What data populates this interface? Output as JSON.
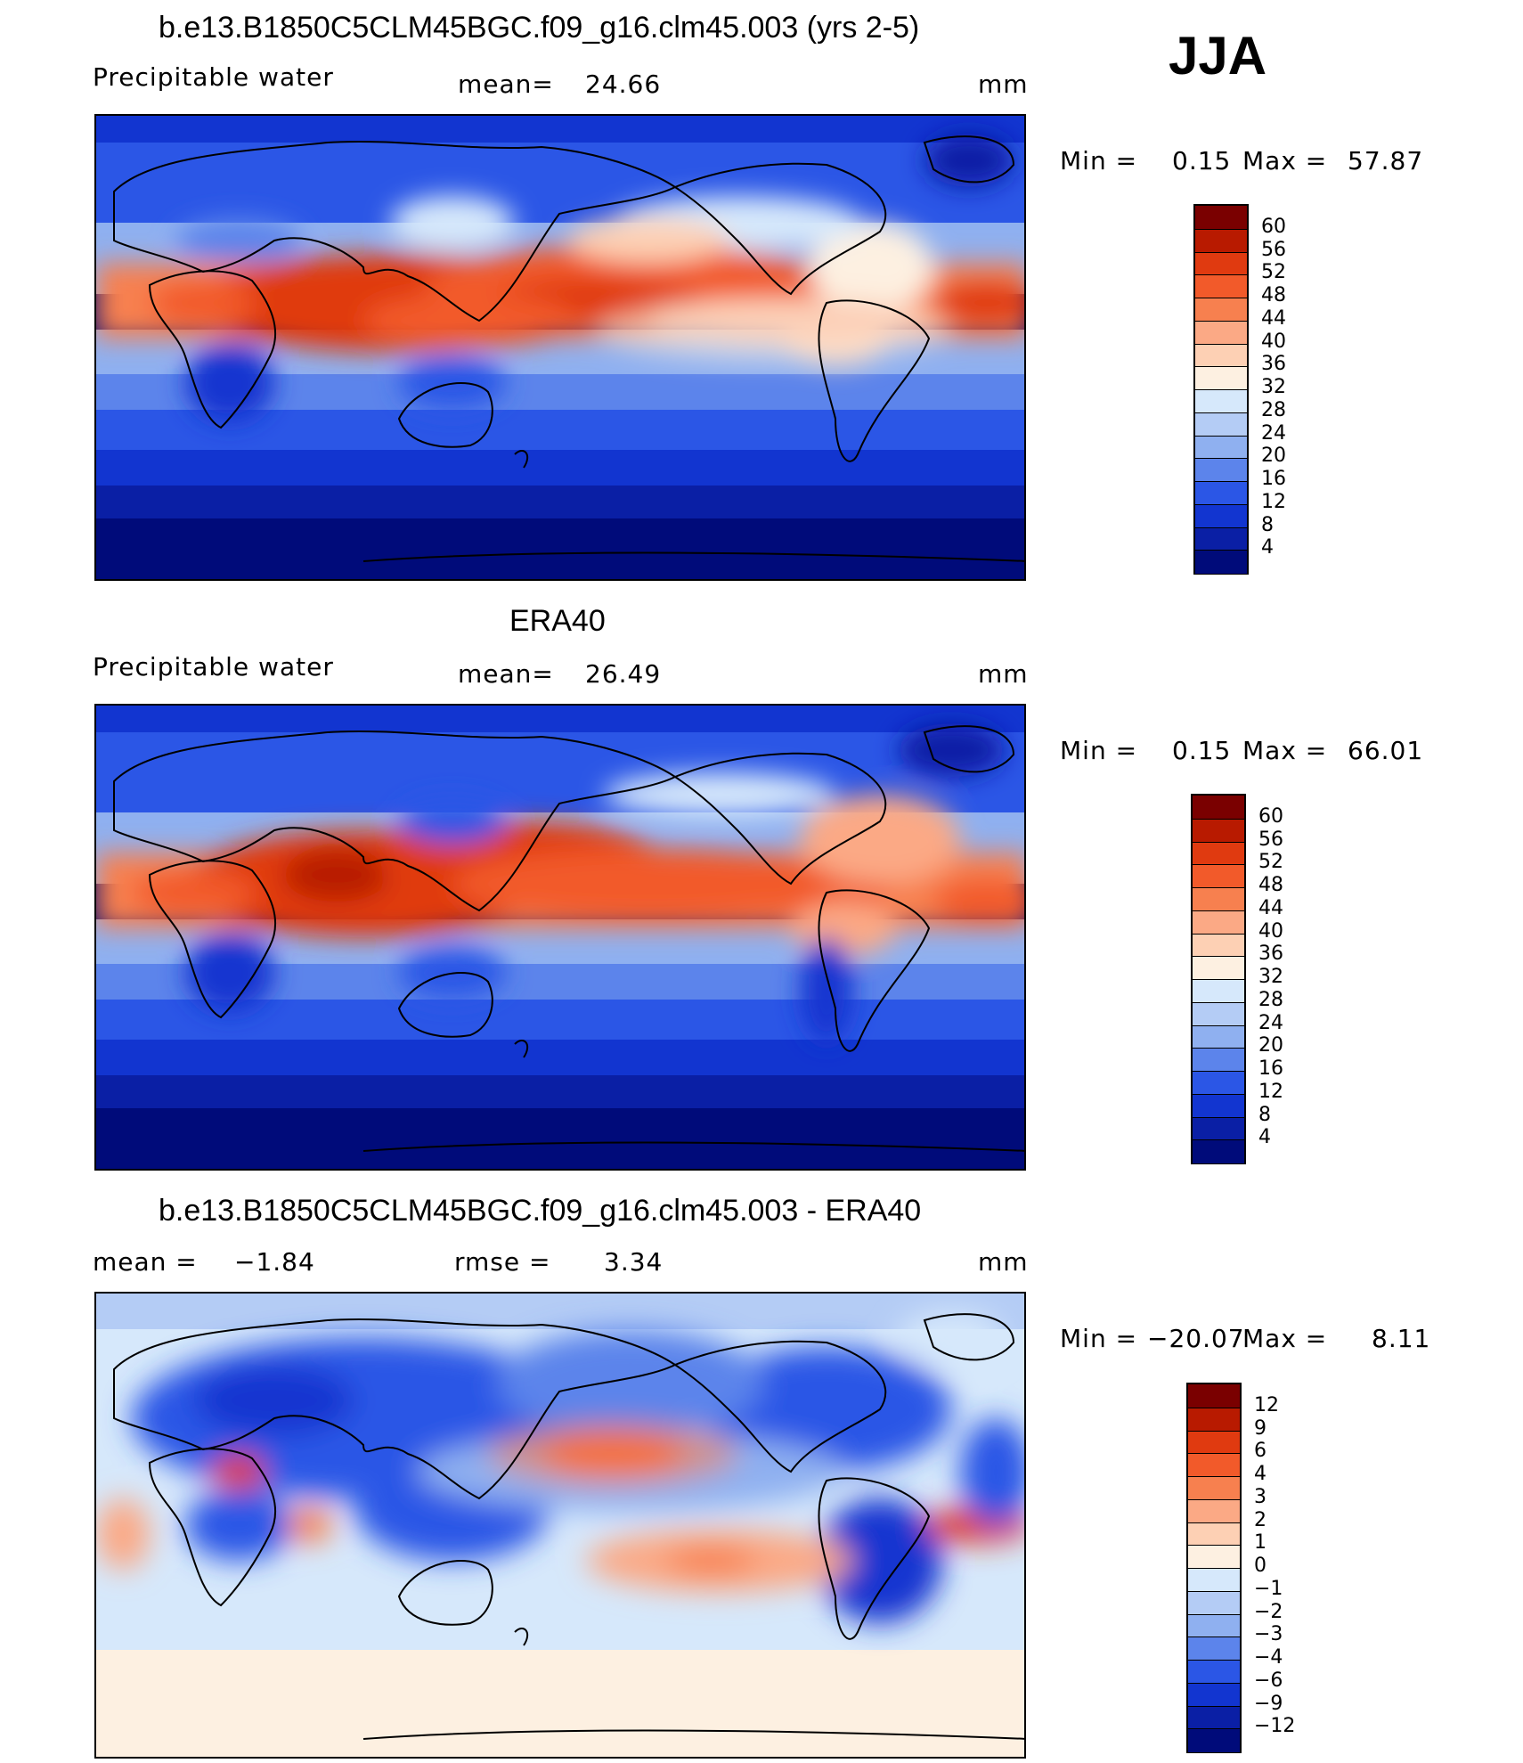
{
  "season": "JJA",
  "panels": [
    {
      "title": "b.e13.B1850C5CLM45BGC.f09_g16.clm45.003 (yrs 2-5)",
      "variable": "Precipitable water",
      "stat_label": "mean=",
      "stat_value": "24.66",
      "unit": "mm",
      "min_label": "Min =",
      "min_value": "0.15",
      "max_label": "Max =",
      "max_value": "57.87",
      "colorbar_labels": [
        "60",
        "56",
        "52",
        "48",
        "44",
        "40",
        "36",
        "32",
        "28",
        "24",
        "20",
        "16",
        "12",
        "8",
        "4"
      ],
      "colorbar_colors": [
        "#7a0000",
        "#b81a00",
        "#e03a10",
        "#f25a2a",
        "#f7804f",
        "#fba985",
        "#fdd0b4",
        "#fdf0e1",
        "#d6e8fb",
        "#b4ccf5",
        "#8fb0f0",
        "#5c84eb",
        "#2b56e6",
        "#1235d0",
        "#0a1fa5",
        "#000b7a"
      ]
    },
    {
      "title": "ERA40",
      "variable": "Precipitable water",
      "stat_label": "mean=",
      "stat_value": "26.49",
      "unit": "mm",
      "min_label": "Min =",
      "min_value": "0.15",
      "max_label": "Max =",
      "max_value": "66.01",
      "colorbar_labels": [
        "60",
        "56",
        "52",
        "48",
        "44",
        "40",
        "36",
        "32",
        "28",
        "24",
        "20",
        "16",
        "12",
        "8",
        "4"
      ],
      "colorbar_colors": [
        "#7a0000",
        "#b81a00",
        "#e03a10",
        "#f25a2a",
        "#f7804f",
        "#fba985",
        "#fdd0b4",
        "#fdf0e1",
        "#d6e8fb",
        "#b4ccf5",
        "#8fb0f0",
        "#5c84eb",
        "#2b56e6",
        "#1235d0",
        "#0a1fa5",
        "#000b7a"
      ]
    },
    {
      "title": "b.e13.B1850C5CLM45BGC.f09_g16.clm45.003 - ERA40",
      "variable": "mean =",
      "variable_value": "−1.84",
      "stat_label": "rmse =",
      "stat_value": "3.34",
      "unit": "mm",
      "min_label": "Min =",
      "min_value": "−20.07",
      "max_label": "Max =",
      "max_value": "8.11",
      "colorbar_labels": [
        "12",
        "9",
        "6",
        "4",
        "3",
        "2",
        "1",
        "0",
        "−1",
        "−2",
        "−3",
        "−4",
        "−6",
        "−9",
        "−12"
      ],
      "colorbar_colors": [
        "#7a0000",
        "#b81a00",
        "#e03a10",
        "#f25a2a",
        "#f7804f",
        "#fba985",
        "#fdd0b4",
        "#fdf0e1",
        "#d6e8fb",
        "#b4ccf5",
        "#8fb0f0",
        "#5c84eb",
        "#2b56e6",
        "#1235d0",
        "#0a1fa5",
        "#000b7a"
      ]
    }
  ]
}
